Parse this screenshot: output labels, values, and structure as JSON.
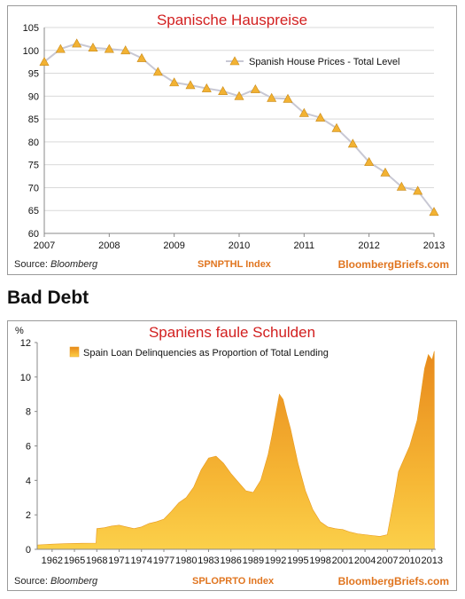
{
  "section_heading": "Bad Debt",
  "charts": {
    "top": {
      "title": "Spanische Hauspreise",
      "legend": "Spanish House Prices - Total Level",
      "source_label": "Source:",
      "source_value": "Bloomberg",
      "index_label": "SPNPTHL Index",
      "brand": "BloombergBriefs.com"
    },
    "bottom": {
      "title": "Spaniens faule Schulden",
      "ylabel": "%",
      "legend": "Spain Loan Delinquencies as Proportion of Total Lending",
      "source_label": "Source:",
      "source_value": "Bloomberg",
      "index_label": "SPLOPRTO Index",
      "brand": "BloombergBriefs.com"
    }
  },
  "colors": {
    "title_red": "#d21f1f",
    "accent_orange": "#e0751f",
    "line_gray": "#c8c8d4",
    "marker_fill": "#f2b233",
    "area_light": "#fbd04a",
    "area_dark": "#e8891c"
  },
  "chart_data": [
    {
      "type": "line",
      "title": "Spanische Hauspreise",
      "x_ticks": [
        "2007",
        "2008",
        "2009",
        "2010",
        "2011",
        "2012",
        "2013"
      ],
      "xlim": [
        2007,
        2013
      ],
      "ylim": [
        60,
        105
      ],
      "y_ticks": [
        60,
        65,
        70,
        75,
        80,
        85,
        90,
        95,
        100,
        105
      ],
      "grid": true,
      "legend_position": "top-right",
      "series": [
        {
          "name": "Spanish House Prices - Total Level",
          "x": [
            2007.0,
            2007.25,
            2007.5,
            2007.75,
            2008.0,
            2008.25,
            2008.5,
            2008.75,
            2009.0,
            2009.25,
            2009.5,
            2009.75,
            2010.0,
            2010.25,
            2010.5,
            2010.75,
            2011.0,
            2011.25,
            2011.5,
            2011.75,
            2012.0,
            2012.25,
            2012.5,
            2012.75,
            2013.0
          ],
          "values": [
            97.5,
            100.3,
            101.5,
            100.6,
            100.3,
            100.0,
            98.3,
            95.3,
            93.0,
            92.4,
            91.7,
            91.1,
            90.0,
            91.5,
            89.6,
            89.4,
            86.3,
            85.3,
            83.0,
            79.6,
            75.6,
            73.3,
            70.2,
            69.3,
            64.7
          ]
        }
      ]
    },
    {
      "type": "area",
      "title": "Spaniens faule Schulden",
      "ylabel": "%",
      "x_ticks": [
        "1962",
        "1965",
        "1968",
        "1971",
        "1974",
        "1977",
        "1980",
        "1983",
        "1986",
        "1989",
        "1992",
        "1995",
        "1998",
        "2001",
        "2004",
        "2007",
        "2010",
        "2013"
      ],
      "xlim": [
        1960,
        2013.5
      ],
      "ylim": [
        0,
        12
      ],
      "y_ticks": [
        0,
        2,
        4,
        6,
        8,
        10,
        12
      ],
      "grid": false,
      "legend_position": "top-left",
      "series": [
        {
          "name": "Spain Loan Delinquencies as Proportion of Total Lending",
          "x": [
            1960,
            1962,
            1964,
            1966,
            1967.9,
            1968,
            1969,
            1970,
            1971,
            1972,
            1973,
            1974,
            1975,
            1976,
            1977,
            1978,
            1979,
            1980,
            1981,
            1982,
            1983,
            1984,
            1985,
            1986,
            1987,
            1988,
            1989,
            1990,
            1991,
            1991.5,
            1992,
            1992.5,
            1993,
            1993.5,
            1994,
            1995,
            1996,
            1997,
            1998,
            1999,
            2000,
            2001,
            2002,
            2003,
            2004,
            2005,
            2006,
            2007,
            2008,
            2008.5,
            2009,
            2010,
            2011,
            2012,
            2012.5,
            2013,
            2013.3
          ],
          "values": [
            0.25,
            0.3,
            0.33,
            0.35,
            0.36,
            1.2,
            1.25,
            1.35,
            1.4,
            1.3,
            1.2,
            1.3,
            1.5,
            1.6,
            1.75,
            2.2,
            2.7,
            3.0,
            3.6,
            4.6,
            5.3,
            5.4,
            5.0,
            4.4,
            3.9,
            3.4,
            3.3,
            4.0,
            5.5,
            6.6,
            7.8,
            9.0,
            8.7,
            7.8,
            7.0,
            5.0,
            3.4,
            2.3,
            1.6,
            1.3,
            1.2,
            1.15,
            1.0,
            0.9,
            0.85,
            0.8,
            0.75,
            0.85,
            3.2,
            4.5,
            5.0,
            6.0,
            7.5,
            10.5,
            11.3,
            11.0,
            11.5
          ]
        }
      ]
    }
  ]
}
